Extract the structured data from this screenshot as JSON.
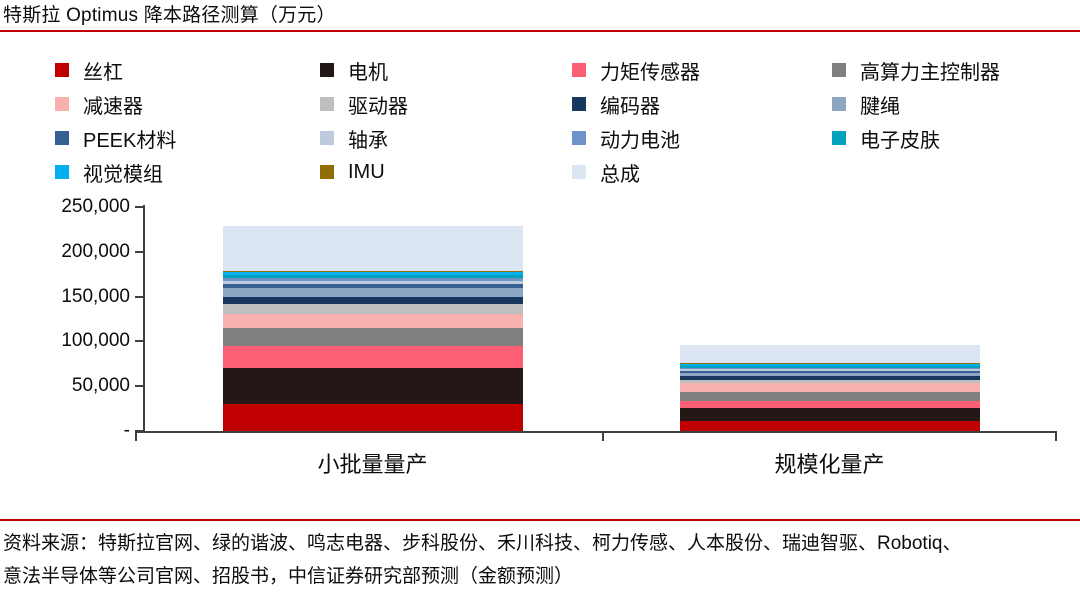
{
  "title": "特斯拉 Optimus 降本路径测算（万元）",
  "accent_color": "#C00000",
  "axis_color": "#3f3f3f",
  "chart_data": {
    "type": "bar",
    "stacked": true,
    "title": "特斯拉 Optimus 降本路径测算（万元）",
    "unit": "万元",
    "categories": [
      "小批量量产",
      "规模化量产"
    ],
    "xlabel": "",
    "ylabel": "",
    "ylim": [
      0,
      250000
    ],
    "grid": false,
    "legend_position": "top",
    "yticks": [
      {
        "value": 250000,
        "label": "250,000"
      },
      {
        "value": 200000,
        "label": "200,000"
      },
      {
        "value": 150000,
        "label": "150,000"
      },
      {
        "value": 100000,
        "label": "100,000"
      },
      {
        "value": 50000,
        "label": "50,000"
      },
      {
        "value": 0,
        "label": "-"
      }
    ],
    "series": [
      {
        "name": "丝杠",
        "color": "#C00000",
        "values": [
          30000,
          11000
        ]
      },
      {
        "name": "电机",
        "color": "#231815",
        "values": [
          40000,
          15000
        ]
      },
      {
        "name": "力矩传感器",
        "color": "#FC5E74",
        "values": [
          25000,
          7000
        ]
      },
      {
        "name": "高算力主控制器",
        "color": "#7F7F7F",
        "values": [
          20000,
          10000
        ]
      },
      {
        "name": "减速器",
        "color": "#F7B2B0",
        "values": [
          16000,
          11000
        ]
      },
      {
        "name": "驱动器",
        "color": "#BFBFBF",
        "values": [
          11000,
          3000
        ]
      },
      {
        "name": "编码器",
        "color": "#17375E",
        "values": [
          8000,
          4000
        ]
      },
      {
        "name": "腱绳",
        "color": "#8CA6C4",
        "values": [
          10000,
          4000
        ]
      },
      {
        "name": "PEEK材料",
        "color": "#376092",
        "values": [
          4000,
          2500
        ]
      },
      {
        "name": "轴承",
        "color": "#BDCBDC",
        "values": [
          4000,
          1500
        ]
      },
      {
        "name": "动力电池",
        "color": "#6D93C9",
        "values": [
          3000,
          1500
        ]
      },
      {
        "name": "电子皮肤",
        "color": "#00A2C0",
        "values": [
          3000,
          2000
        ]
      },
      {
        "name": "视觉模组",
        "color": "#00B0F0",
        "values": [
          3000,
          2000
        ]
      },
      {
        "name": "IMU",
        "color": "#8F6D00",
        "values": [
          1500,
          1000
        ]
      },
      {
        "name": "总成",
        "color": "#DCE6F2",
        "values": [
          50000,
          20500
        ]
      }
    ]
  },
  "source": {
    "line1": "资料来源：特斯拉官网、绿的谐波、鸣志电器、步科股份、禾川科技、柯力传感、人本股份、瑞迪智驱、Robotiq、",
    "line2": "意法半导体等公司官网、招股书，中信证券研究部预测（金额预测）"
  }
}
